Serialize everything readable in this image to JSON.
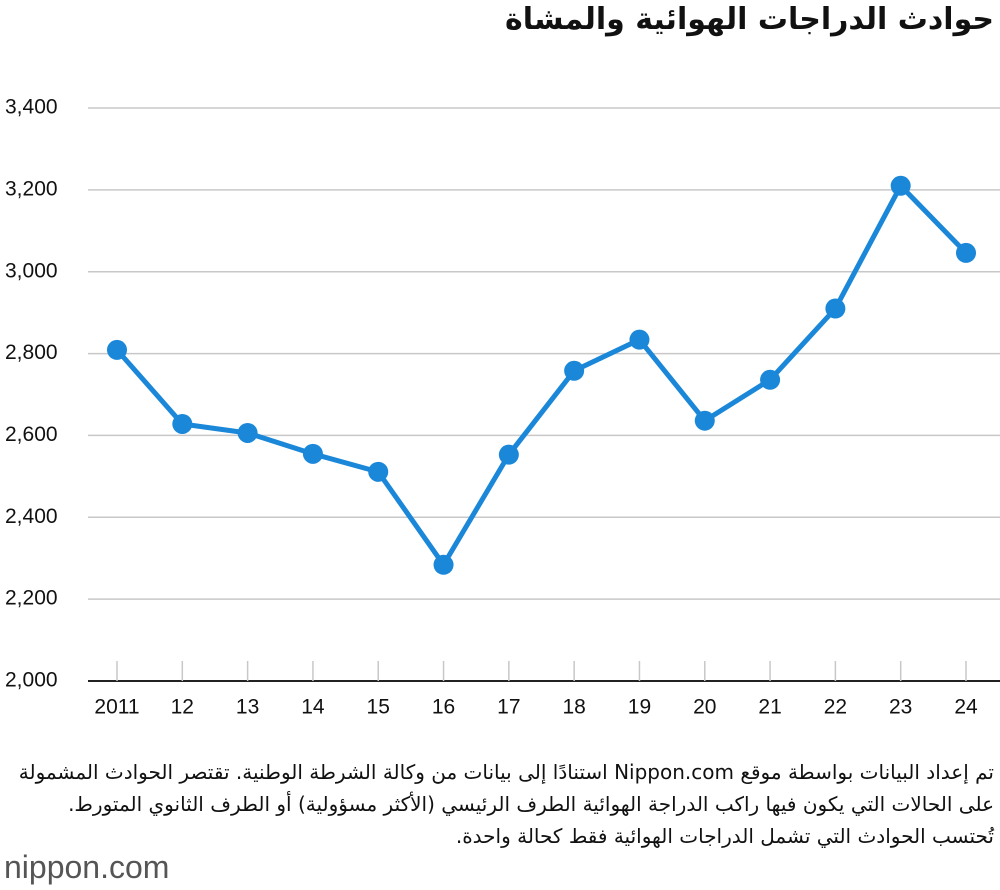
{
  "chart_data": {
    "type": "line",
    "title": "حوادث الدراجات الهوائية والمشاة",
    "categories": [
      "2011",
      "12",
      "13",
      "14",
      "15",
      "16",
      "17",
      "18",
      "19",
      "20",
      "21",
      "22",
      "23",
      "24"
    ],
    "series": [
      {
        "name": "حوادث الدراجات الهوائية والمشاة",
        "color": "#1a87d9",
        "values": [
          2809,
          2628,
          2606,
          2555,
          2511,
          2284,
          2553,
          2758,
          2834,
          2636,
          2736,
          2910,
          3210,
          3046
        ]
      }
    ],
    "ylim": [
      2000,
      3400
    ],
    "yticks": [
      {
        "value": 2000,
        "label": "2,000"
      },
      {
        "value": 2200,
        "label": "2,200"
      },
      {
        "value": 2400,
        "label": "2,400"
      },
      {
        "value": 2600,
        "label": "2,600"
      },
      {
        "value": 2800,
        "label": "2,800"
      },
      {
        "value": 3000,
        "label": "3,000"
      },
      {
        "value": 3200,
        "label": "3,200"
      },
      {
        "value": 3400,
        "label": "3,400"
      }
    ],
    "grid": true,
    "note": "تم إعداد البيانات بواسطة موقع Nippon.com استنادًا إلى بيانات من وكالة الشرطة الوطنية. تقتصر الحوادث المشمولة على الحالات التي يكون فيها راكب الدراجة الهوائية الطرف الرئيسي (الأكثر مسؤولية) أو الطرف الثانوي المتورط. تُحتسب الحوادث التي تشمل الدراجات الهوائية فقط كحالة واحدة.",
    "logo": "nippon.com"
  }
}
